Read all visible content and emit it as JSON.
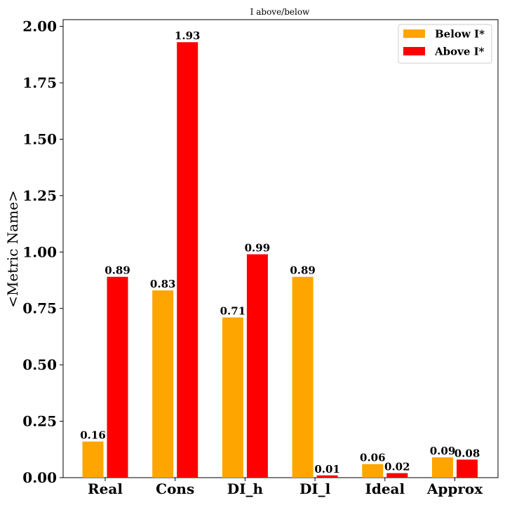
{
  "chart_data": {
    "type": "bar",
    "title": "I above/below",
    "xlabel": "",
    "ylabel": "<Metric Name>",
    "categories": [
      "Real",
      "Cons",
      "DI_h",
      "DI_l",
      "Ideal",
      "Approx"
    ],
    "series": [
      {
        "name": "Below I*",
        "color": "#FFA500",
        "values": [
          0.16,
          0.83,
          0.71,
          0.89,
          0.06,
          0.09
        ],
        "labels": [
          "0.16",
          "0.83",
          "0.71",
          "0.89",
          "0.06",
          "0.09"
        ]
      },
      {
        "name": "Above I*",
        "color": "#FF0000",
        "values": [
          0.89,
          1.93,
          0.99,
          0.01,
          0.02,
          0.08
        ],
        "labels": [
          "0.89",
          "1.93",
          "0.99",
          "0.01",
          "0.02",
          "0.08"
        ]
      }
    ],
    "ylim": [
      0,
      2.03
    ],
    "yticks": [
      "0.00",
      "0.25",
      "0.50",
      "0.75",
      "1.00",
      "1.25",
      "1.50",
      "1.75",
      "2.00"
    ],
    "legend": "top-right",
    "grid": false
  }
}
